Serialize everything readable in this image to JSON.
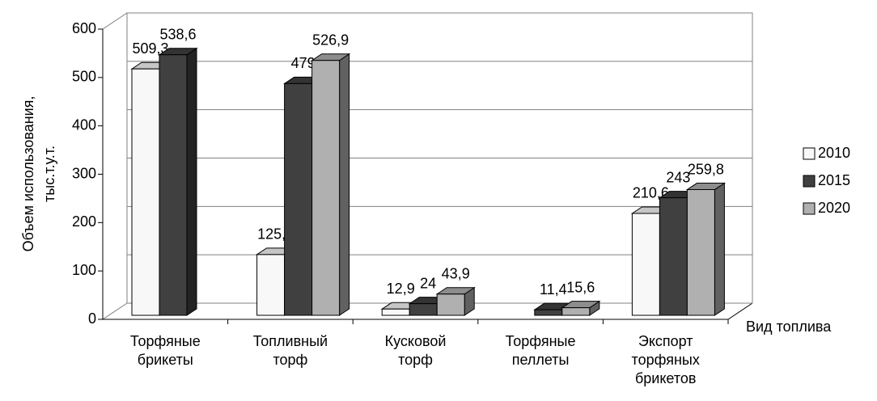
{
  "chart_data": {
    "type": "bar3d",
    "ylabel": [
      "Объем использования,",
      "тыс.т.у.т."
    ],
    "xlabel": "Вид топлива",
    "categories": [
      [
        "Торфяные",
        "брикеты"
      ],
      [
        "Топливный",
        "торф"
      ],
      [
        "Кусковой",
        "торф"
      ],
      [
        "Торфяные",
        "пеллеты"
      ],
      [
        "Экспорт",
        "торфяных",
        "брикетов"
      ]
    ],
    "series": [
      {
        "name": "2010",
        "color": "#f8f8f8",
        "values": [
          509.3,
          125.6,
          12.9,
          null,
          210.6
        ],
        "value_labels": [
          "509,3",
          "125,6",
          "12,9",
          null,
          "210,6"
        ]
      },
      {
        "name": "2015",
        "color": "#404040",
        "values": [
          538.6,
          479,
          24,
          11.4,
          243
        ],
        "value_labels": [
          "538,6",
          "479",
          "24",
          "11,4",
          "243"
        ]
      },
      {
        "name": "2020",
        "color": "#b0b0b0",
        "values": [
          null,
          526.9,
          43.9,
          15.6,
          259.8
        ],
        "value_labels": [
          null,
          "526,9",
          "43,9",
          "15,6",
          "259,8"
        ]
      }
    ],
    "ylim": [
      0,
      600
    ],
    "yticks": [
      0,
      100,
      200,
      300,
      400,
      500,
      600
    ],
    "grid": true,
    "legend": "right"
  }
}
